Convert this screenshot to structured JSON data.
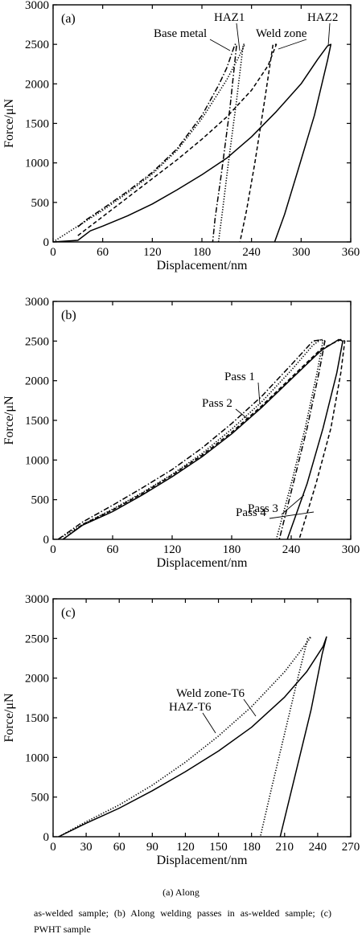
{
  "chart_data": [
    {
      "type": "line",
      "panel_label": "(a)",
      "xlabel": "Displacement/nm",
      "ylabel": "Force/μN",
      "xlim": [
        0,
        360
      ],
      "ylim": [
        0,
        3000
      ],
      "xticks": [
        0,
        60,
        120,
        180,
        240,
        300,
        360
      ],
      "yticks": [
        0,
        500,
        1000,
        1500,
        2000,
        2500,
        3000
      ],
      "grid": false,
      "series": [
        {
          "name": "Base metal",
          "style": "dashdot",
          "x": [
            30,
            40,
            60,
            90,
            120,
            150,
            180,
            200,
            210,
            220,
            222,
            214,
            204,
            196,
            193
          ],
          "y": [
            190,
            280,
            420,
            640,
            880,
            1180,
            1600,
            1980,
            2200,
            2500,
            2500,
            1700,
            900,
            300,
            0
          ]
        },
        {
          "name": "HAZ1",
          "style": "dotted",
          "x": [
            0,
            30,
            60,
            90,
            120,
            150,
            180,
            210,
            225,
            232,
            230,
            222,
            212,
            205,
            200
          ],
          "y": [
            0,
            200,
            400,
            620,
            860,
            1160,
            1560,
            2050,
            2350,
            2500,
            2500,
            1800,
            1000,
            400,
            0
          ]
        },
        {
          "name": "Weld zone",
          "style": "dashed",
          "x": [
            30,
            60,
            90,
            120,
            150,
            180,
            210,
            240,
            260,
            270,
            266,
            256,
            244,
            234,
            226
          ],
          "y": [
            80,
            320,
            560,
            800,
            1040,
            1300,
            1580,
            1920,
            2230,
            2500,
            2500,
            1800,
            1000,
            400,
            0
          ]
        },
        {
          "name": "HAZ2",
          "style": "solid",
          "x": [
            0,
            30,
            45,
            60,
            90,
            120,
            150,
            180,
            210,
            240,
            270,
            300,
            320,
            332,
            336,
            332,
            316,
            296,
            280,
            268
          ],
          "y": [
            0,
            20,
            140,
            200,
            330,
            480,
            660,
            850,
            1060,
            1330,
            1650,
            2000,
            2310,
            2480,
            2500,
            2300,
            1600,
            900,
            350,
            0
          ]
        }
      ]
    },
    {
      "type": "line",
      "panel_label": "(b)",
      "xlabel": "Displacement/nm",
      "ylabel": "Force/μN",
      "xlim": [
        0,
        300
      ],
      "ylim": [
        0,
        3000
      ],
      "xticks": [
        0,
        60,
        120,
        180,
        240,
        300
      ],
      "yticks": [
        0,
        500,
        1000,
        1500,
        2000,
        2500,
        3000
      ],
      "grid": false,
      "series": [
        {
          "name": "Pass 1",
          "style": "dashdot",
          "x": [
            5,
            30,
            60,
            90,
            120,
            150,
            180,
            210,
            240,
            262,
            272,
            274,
            268,
            256,
            242,
            228
          ],
          "y": [
            0,
            220,
            430,
            650,
            880,
            1150,
            1460,
            1800,
            2200,
            2500,
            2520,
            2500,
            2100,
            1400,
            700,
            0
          ]
        },
        {
          "name": "Pass 2",
          "style": "dotted",
          "x": [
            5,
            30,
            60,
            90,
            120,
            150,
            180,
            210,
            240,
            262,
            270,
            272,
            266,
            254,
            240,
            225
          ],
          "y": [
            0,
            190,
            380,
            590,
            820,
            1080,
            1390,
            1730,
            2130,
            2450,
            2520,
            2500,
            2100,
            1400,
            700,
            0
          ]
        },
        {
          "name": "Pass 3",
          "style": "solid",
          "x": [
            10,
            30,
            60,
            90,
            120,
            150,
            180,
            210,
            240,
            270,
            288,
            292,
            286,
            272,
            256,
            236
          ],
          "y": [
            0,
            180,
            350,
            560,
            790,
            1040,
            1330,
            1660,
            2020,
            2380,
            2520,
            2500,
            2100,
            1400,
            700,
            0
          ]
        },
        {
          "name": "Pass 4",
          "style": "dashed",
          "x": [
            10,
            30,
            60,
            90,
            120,
            150,
            180,
            210,
            240,
            270,
            290,
            294,
            290,
            280,
            265,
            248
          ],
          "y": [
            0,
            190,
            370,
            580,
            810,
            1060,
            1350,
            1680,
            2040,
            2400,
            2520,
            2500,
            2100,
            1400,
            700,
            0
          ]
        }
      ]
    },
    {
      "type": "line",
      "panel_label": "(c)",
      "xlabel": "Displacement/nm",
      "ylabel": "Force/μN",
      "xlim": [
        0,
        270
      ],
      "ylim": [
        0,
        3000
      ],
      "xticks": [
        0,
        30,
        60,
        90,
        120,
        150,
        180,
        210,
        240,
        270
      ],
      "yticks": [
        0,
        500,
        1000,
        1500,
        2000,
        2500,
        3000
      ],
      "grid": false,
      "series": [
        {
          "name": "HAZ-T6",
          "style": "dotted",
          "x": [
            5,
            30,
            60,
            90,
            120,
            150,
            180,
            210,
            225,
            234,
            231,
            222,
            210,
            198,
            188
          ],
          "y": [
            0,
            190,
            400,
            650,
            940,
            1270,
            1640,
            2080,
            2350,
            2520,
            2500,
            2000,
            1300,
            600,
            0
          ]
        },
        {
          "name": "Weld zone-T6",
          "style": "solid",
          "x": [
            5,
            30,
            60,
            90,
            120,
            150,
            180,
            210,
            230,
            245,
            248,
            244,
            234,
            220,
            206
          ],
          "y": [
            0,
            170,
            360,
            580,
            820,
            1080,
            1380,
            1760,
            2080,
            2400,
            2520,
            2300,
            1600,
            800,
            0
          ]
        }
      ]
    }
  ],
  "annotations": [
    [
      "Base metal",
      "HAZ1",
      "Weld zone",
      "HAZ2"
    ],
    [
      "Pass 1",
      "Pass 2",
      "Pass 3",
      "Pass 4"
    ],
    [
      "Weld zone-T6",
      "HAZ-T6"
    ]
  ],
  "caption": {
    "line1": "(a)   Along",
    "line2": "as-welded sample; (b) Along welding passes in as-welded sample; (c) PWHT sample"
  }
}
